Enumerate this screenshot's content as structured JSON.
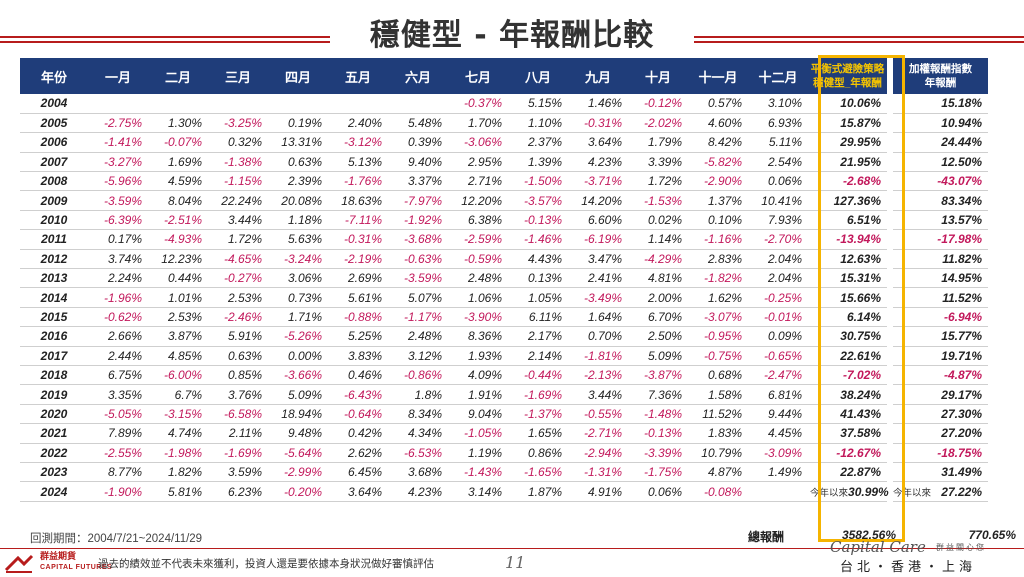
{
  "title": "穩健型 - 年報酬比較",
  "table": {
    "headers": [
      "年份",
      "一月",
      "二月",
      "三月",
      "四月",
      "五月",
      "六月",
      "七月",
      "八月",
      "九月",
      "十月",
      "十一月",
      "十二月"
    ],
    "strategy_header": [
      "平衡式避險策略",
      "穩健型_年報酬"
    ],
    "index_header": [
      "加權報酬指數",
      "年報酬"
    ],
    "rows": [
      {
        "year": "2004",
        "m": [
          "",
          "",
          "",
          "",
          "",
          "",
          "-0.37%",
          "5.15%",
          "1.46%",
          "-0.12%",
          "0.57%",
          "3.10%"
        ],
        "s": "10.06%",
        "i": "15.18%"
      },
      {
        "year": "2005",
        "m": [
          "-2.75%",
          "1.30%",
          "-3.25%",
          "0.19%",
          "2.40%",
          "5.48%",
          "1.70%",
          "1.10%",
          "-0.31%",
          "-2.02%",
          "4.60%",
          "6.93%"
        ],
        "s": "15.87%",
        "i": "10.94%"
      },
      {
        "year": "2006",
        "m": [
          "-1.41%",
          "-0.07%",
          "0.32%",
          "13.31%",
          "-3.12%",
          "0.39%",
          "-3.06%",
          "2.37%",
          "3.64%",
          "1.79%",
          "8.42%",
          "5.11%"
        ],
        "s": "29.95%",
        "i": "24.44%"
      },
      {
        "year": "2007",
        "m": [
          "-3.27%",
          "1.69%",
          "-1.38%",
          "0.63%",
          "5.13%",
          "9.40%",
          "2.95%",
          "1.39%",
          "4.23%",
          "3.39%",
          "-5.82%",
          "2.54%"
        ],
        "s": "21.95%",
        "i": "12.50%"
      },
      {
        "year": "2008",
        "m": [
          "-5.96%",
          "4.59%",
          "-1.15%",
          "2.39%",
          "-1.76%",
          "3.37%",
          "2.71%",
          "-1.50%",
          "-3.71%",
          "1.72%",
          "-2.90%",
          "0.06%"
        ],
        "s": "-2.68%",
        "i": "-43.07%"
      },
      {
        "year": "2009",
        "m": [
          "-3.59%",
          "8.04%",
          "22.24%",
          "20.08%",
          "18.63%",
          "-7.97%",
          "12.20%",
          "-3.57%",
          "14.20%",
          "-1.53%",
          "1.37%",
          "10.41%"
        ],
        "s": "127.36%",
        "i": "83.34%"
      },
      {
        "year": "2010",
        "m": [
          "-6.39%",
          "-2.51%",
          "3.44%",
          "1.18%",
          "-7.11%",
          "-1.92%",
          "6.38%",
          "-0.13%",
          "6.60%",
          "0.02%",
          "0.10%",
          "7.93%"
        ],
        "s": "6.51%",
        "i": "13.57%"
      },
      {
        "year": "2011",
        "m": [
          "0.17%",
          "-4.93%",
          "1.72%",
          "5.63%",
          "-0.31%",
          "-3.68%",
          "-2.59%",
          "-1.46%",
          "-6.19%",
          "1.14%",
          "-1.16%",
          "-2.70%"
        ],
        "s": "-13.94%",
        "i": "-17.98%"
      },
      {
        "year": "2012",
        "m": [
          "3.74%",
          "12.23%",
          "-4.65%",
          "-3.24%",
          "-2.19%",
          "-0.63%",
          "-0.59%",
          "4.43%",
          "3.47%",
          "-4.29%",
          "2.83%",
          "2.04%"
        ],
        "s": "12.63%",
        "i": "11.82%"
      },
      {
        "year": "2013",
        "m": [
          "2.24%",
          "0.44%",
          "-0.27%",
          "3.06%",
          "2.69%",
          "-3.59%",
          "2.48%",
          "0.13%",
          "2.41%",
          "4.81%",
          "-1.82%",
          "2.04%"
        ],
        "s": "15.31%",
        "i": "14.95%"
      },
      {
        "year": "2014",
        "m": [
          "-1.96%",
          "1.01%",
          "2.53%",
          "0.73%",
          "5.61%",
          "5.07%",
          "1.06%",
          "1.05%",
          "-3.49%",
          "2.00%",
          "1.62%",
          "-0.25%"
        ],
        "s": "15.66%",
        "i": "11.52%"
      },
      {
        "year": "2015",
        "m": [
          "-0.62%",
          "2.53%",
          "-2.46%",
          "1.71%",
          "-0.88%",
          "-1.17%",
          "-3.90%",
          "6.11%",
          "1.64%",
          "6.70%",
          "-3.07%",
          "-0.01%"
        ],
        "s": "6.14%",
        "i": "-6.94%"
      },
      {
        "year": "2016",
        "m": [
          "2.66%",
          "3.87%",
          "5.91%",
          "-5.26%",
          "5.25%",
          "2.48%",
          "8.36%",
          "2.17%",
          "0.70%",
          "2.50%",
          "-0.95%",
          "0.09%"
        ],
        "s": "30.75%",
        "i": "15.77%"
      },
      {
        "year": "2017",
        "m": [
          "2.44%",
          "4.85%",
          "0.63%",
          "0.00%",
          "3.83%",
          "3.12%",
          "1.93%",
          "2.14%",
          "-1.81%",
          "5.09%",
          "-0.75%",
          "-0.65%"
        ],
        "s": "22.61%",
        "i": "19.71%"
      },
      {
        "year": "2018",
        "m": [
          "6.75%",
          "-6.00%",
          "0.85%",
          "-3.66%",
          "0.46%",
          "-0.86%",
          "4.09%",
          "-0.44%",
          "-2.13%",
          "-3.87%",
          "0.68%",
          "-2.47%"
        ],
        "s": "-7.02%",
        "i": "-4.87%"
      },
      {
        "year": "2019",
        "m": [
          "3.35%",
          "6.7%",
          "3.76%",
          "5.09%",
          "-6.43%",
          "1.8%",
          "1.91%",
          "-1.69%",
          "3.44%",
          "7.36%",
          "1.58%",
          "6.81%"
        ],
        "s": "38.24%",
        "i": "29.17%"
      },
      {
        "year": "2020",
        "m": [
          "-5.05%",
          "-3.15%",
          "-6.58%",
          "18.94%",
          "-0.64%",
          "8.34%",
          "9.04%",
          "-1.37%",
          "-0.55%",
          "-1.48%",
          "11.52%",
          "9.44%"
        ],
        "s": "41.43%",
        "i": "27.30%"
      },
      {
        "year": "2021",
        "m": [
          "7.89%",
          "4.74%",
          "2.11%",
          "9.48%",
          "0.42%",
          "4.34%",
          "-1.05%",
          "1.65%",
          "-2.71%",
          "-0.13%",
          "1.83%",
          "4.45%"
        ],
        "s": "37.58%",
        "i": "27.20%"
      },
      {
        "year": "2022",
        "m": [
          "-2.55%",
          "-1.98%",
          "-1.69%",
          "-5.64%",
          "2.62%",
          "-6.53%",
          "1.19%",
          "0.86%",
          "-2.94%",
          "-3.39%",
          "10.79%",
          "-3.09%"
        ],
        "s": "-12.67%",
        "i": "-18.75%"
      },
      {
        "year": "2023",
        "m": [
          "8.77%",
          "1.82%",
          "3.59%",
          "-2.99%",
          "6.45%",
          "3.68%",
          "-1.43%",
          "-1.65%",
          "-1.31%",
          "-1.75%",
          "4.87%",
          "1.49%"
        ],
        "s": "22.87%",
        "i": "31.49%"
      },
      {
        "year": "2024",
        "m": [
          "-1.90%",
          "5.81%",
          "6.23%",
          "-0.20%",
          "3.64%",
          "4.23%",
          "3.14%",
          "1.87%",
          "4.91%",
          "0.06%",
          "-0.08%",
          ""
        ],
        "s": "30.99%",
        "i": "27.22%",
        "since_label": "今年以來"
      }
    ]
  },
  "backtest_period": "回測期間：2004/7/21~2024/11/29",
  "total_label": "總報酬",
  "total_strategy": "3582.56%",
  "total_index": "770.65%",
  "footer": {
    "company_cn": "群益期貨",
    "company_en": "CAPITAL FUTURES",
    "disclaimer": "過去的績效並不代表未來獲利，投資人還是要依據本身狀況做好審慎評估",
    "page_number": "11",
    "brand_script": "Capital Care",
    "brand_cn": "群益關心您",
    "cities": "台北・香港・上海"
  },
  "colors": {
    "header_bg": "#1f3d7a",
    "negative": "#c2185b",
    "highlight_box": "#f5b400",
    "accent_red": "#b71c1c"
  }
}
